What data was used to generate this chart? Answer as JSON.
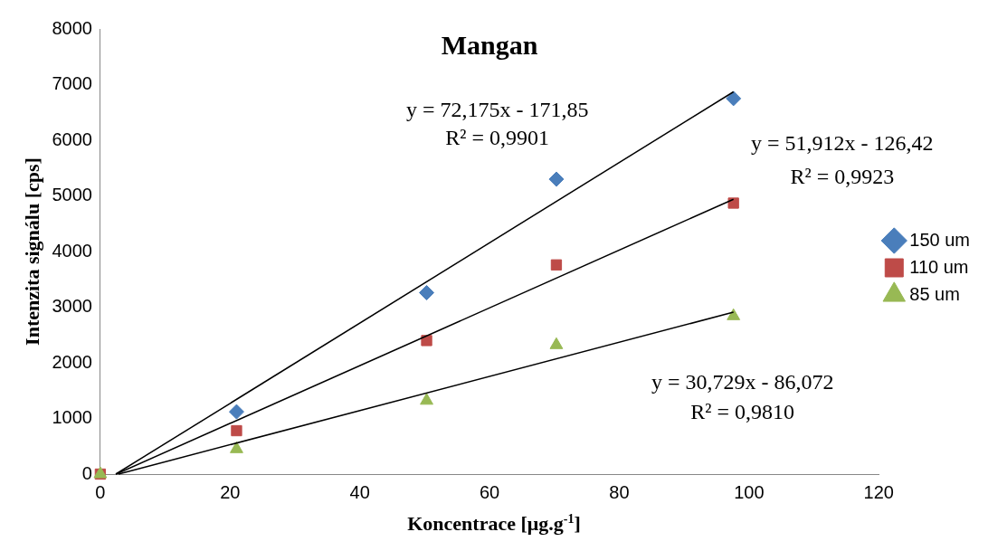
{
  "chart_data": {
    "type": "scatter",
    "title": "Mangan",
    "xlabel": "Koncentrace [μg.g$^{-1}$]",
    "ylabel": "Intenzita signálu [cps]",
    "xlim": [
      0,
      120
    ],
    "xticks": [
      0,
      20,
      40,
      60,
      80,
      100,
      120
    ],
    "ylim": [
      0,
      8000
    ],
    "yticks": [
      0,
      1000,
      2000,
      3000,
      4000,
      5000,
      6000,
      7000,
      8000
    ],
    "grid": false,
    "legend": "right",
    "series": [
      {
        "name": "150 um",
        "color": "#4a7ebb",
        "marker": "diamond",
        "x": [
          21,
          50.3,
          70.3,
          97.6
        ],
        "values": [
          1120,
          3260,
          5300,
          6750
        ]
      },
      {
        "name": "110 um",
        "color": "#be4b48",
        "marker": "square",
        "x": [
          0,
          21,
          50.3,
          70.3,
          97.6
        ],
        "values": [
          0,
          780,
          2400,
          3760,
          4870
        ]
      },
      {
        "name": "85 um",
        "color": "#98b954",
        "marker": "triangle",
        "x": [
          0,
          21,
          50.3,
          70.3,
          97.6
        ],
        "values": [
          0,
          450,
          1320,
          2320,
          2840
        ]
      },
      {
        "type": "line",
        "color": "#000000",
        "marker": "none",
        "x": [
          2.38,
          97.6
        ],
        "values": [
          0,
          6870
        ]
      },
      {
        "type": "line",
        "color": "#000000",
        "marker": "none",
        "x": [
          2.44,
          97.6
        ],
        "values": [
          0,
          4940
        ]
      },
      {
        "type": "line",
        "color": "#000000",
        "marker": "none",
        "x": [
          2.8,
          97.6
        ],
        "values": [
          0,
          2910
        ]
      }
    ],
    "annotations": [
      "y = 72,175x - 171,85",
      "R² = 0,9901",
      "y = 51,912x - 126,42",
      "R² = 0,9923",
      "y = 30,729x - 86,072",
      "R² = 0,9810"
    ]
  }
}
